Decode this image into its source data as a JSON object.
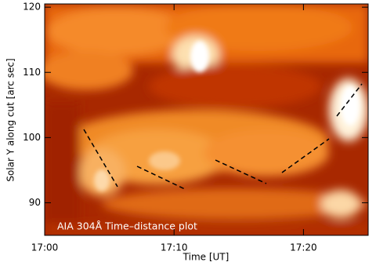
{
  "chart_data": {
    "type": "heatmap",
    "title": "AIA 304Å Time–distance plot",
    "x_label": "Time [UT]",
    "y_label": "Solar Y along cut [arc sec]",
    "xlim": [
      "17:00",
      "17:25"
    ],
    "xticks": [
      "17:00",
      "17:10",
      "17:20"
    ],
    "ylim": [
      85,
      120.5
    ],
    "yticks": [
      90,
      100,
      110,
      120
    ]
  }
}
